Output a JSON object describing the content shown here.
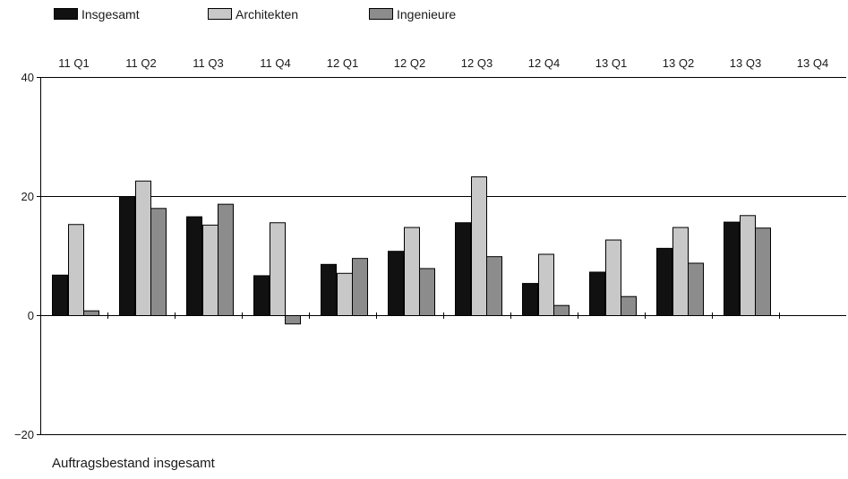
{
  "chart_data": {
    "type": "bar",
    "categories": [
      "11 Q1",
      "11 Q2",
      "11 Q3",
      "11 Q4",
      "12 Q1",
      "12 Q2",
      "12 Q3",
      "12 Q4",
      "13 Q1",
      "13 Q2",
      "13 Q3",
      "13 Q4"
    ],
    "series": [
      {
        "name": "Insgesamt",
        "color": "#111111",
        "values": [
          6.8,
          20.0,
          16.6,
          6.7,
          8.6,
          10.8,
          15.6,
          5.4,
          7.3,
          11.3,
          15.7,
          null
        ]
      },
      {
        "name": "Architekten",
        "color": "#c8c8c8",
        "values": [
          15.3,
          22.6,
          15.2,
          15.6,
          7.1,
          14.8,
          23.3,
          10.3,
          12.7,
          14.8,
          16.8,
          null
        ]
      },
      {
        "name": "Ingenieure",
        "color": "#8c8c8c",
        "values": [
          0.8,
          18.0,
          18.7,
          -1.4,
          9.6,
          7.9,
          9.9,
          1.7,
          3.2,
          8.8,
          14.7,
          null
        ]
      }
    ],
    "yticks": [
      40,
      20,
      0,
      -20
    ],
    "ytick_labels": [
      "40",
      "20",
      "0",
      "−20"
    ],
    "ylim": [
      -20,
      40
    ],
    "gridlines": [
      20
    ],
    "xlabel": "Auftragsbestand insgesamt",
    "ylabel": "",
    "legend_position": "top-left"
  }
}
